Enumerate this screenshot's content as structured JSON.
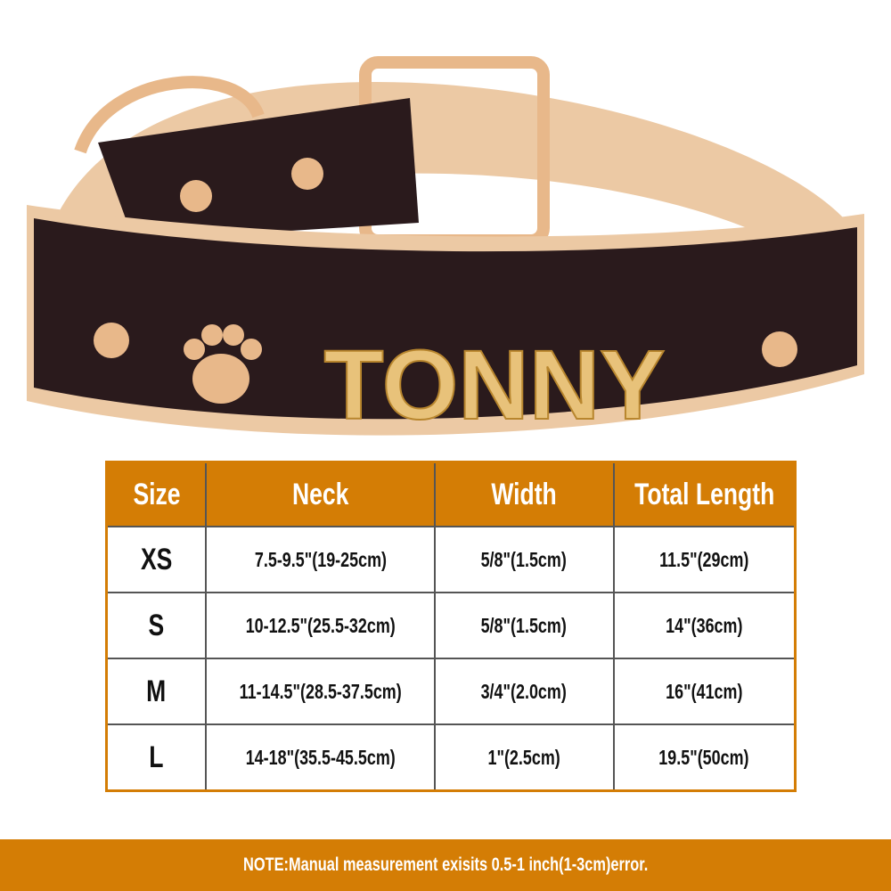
{
  "product": {
    "name_on_collar": "TONNY",
    "colors": {
      "leather": "#2a1a1c",
      "padding": "#ecc9a4",
      "hardware": "#e8b88a",
      "accent": "#d47d05"
    }
  },
  "size_table": {
    "headers": [
      "Size",
      "Neck",
      "Width",
      "Total Length"
    ],
    "rows": [
      [
        "XS",
        "7.5-9.5\"(19-25cm)",
        "5/8\"(1.5cm)",
        "11.5\"(29cm)"
      ],
      [
        "S",
        "10-12.5\"(25.5-32cm)",
        "5/8\"(1.5cm)",
        "14\"(36cm)"
      ],
      [
        "M",
        "11-14.5\"(28.5-37.5cm)",
        "3/4\"(2.0cm)",
        "16\"(41cm)"
      ],
      [
        "L",
        "14-18\"(35.5-45.5cm)",
        "1\"(2.5cm)",
        "19.5\"(50cm)"
      ]
    ]
  },
  "note": "NOTE:Manual measurement exisits 0.5-1 inch(1-3cm)error."
}
